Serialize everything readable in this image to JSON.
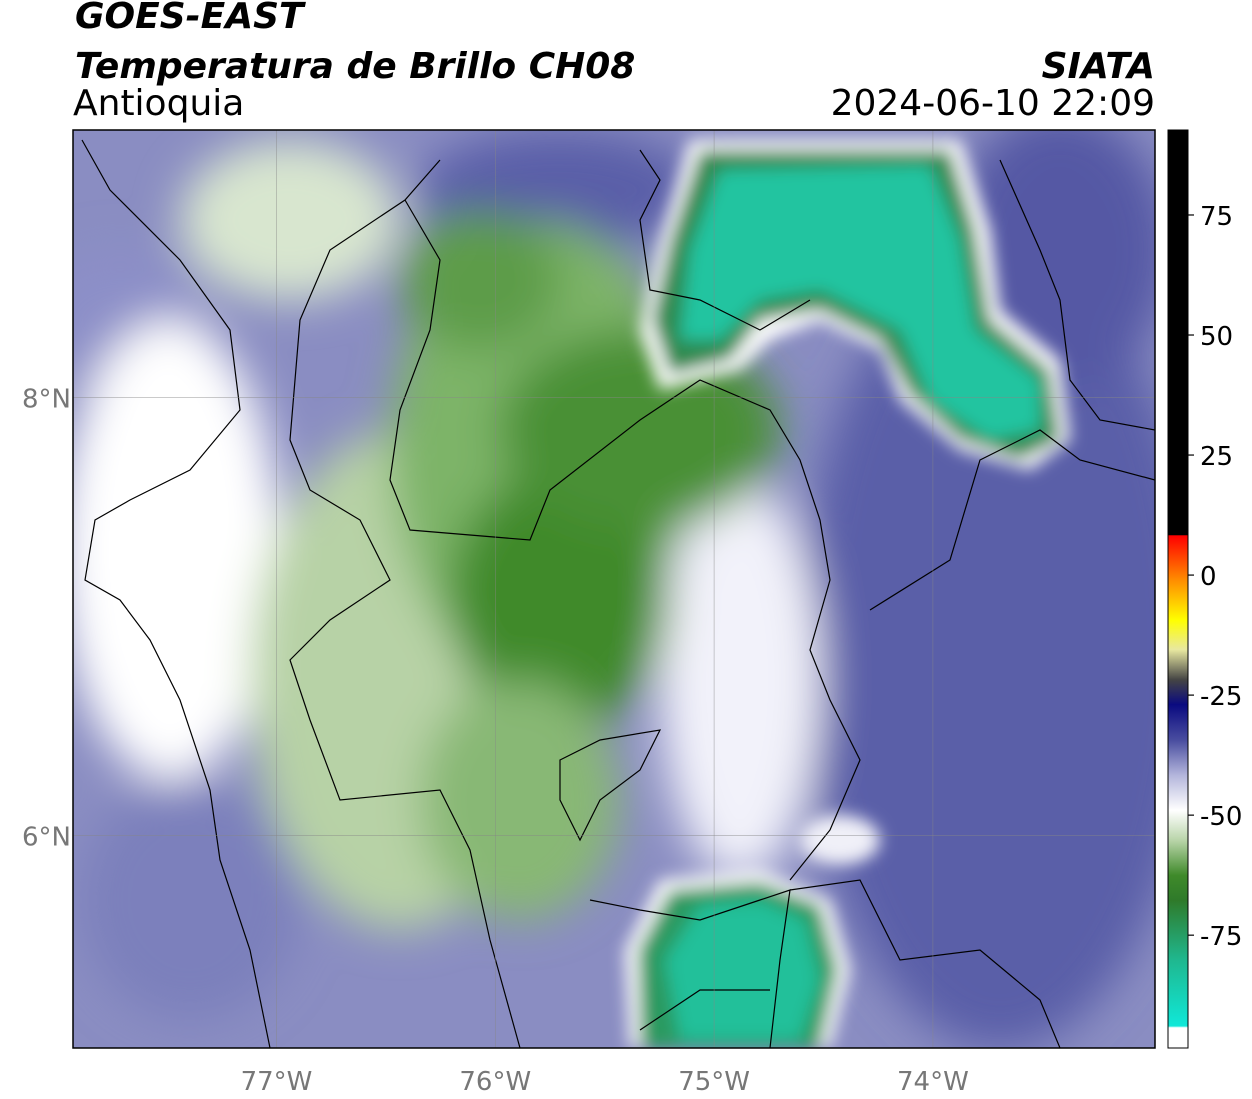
{
  "header": {
    "title": "GOES-EAST",
    "subtitle": "Temperatura de Brillo CH08",
    "region": "Antioquia",
    "source": "SIATA",
    "datetime": "2024-06-10 22:09"
  },
  "map": {
    "xlim": [
      -77.93,
      -72.985
    ],
    "ylim": [
      5.03,
      9.22
    ],
    "xticks": [
      {
        "value": -77,
        "label": "77°W"
      },
      {
        "value": -76,
        "label": "76°W"
      },
      {
        "value": -75,
        "label": "75°W"
      },
      {
        "value": -74,
        "label": "74°W"
      }
    ],
    "yticks": [
      {
        "value": 8,
        "label": "8°N"
      },
      {
        "value": 6,
        "label": "6°N"
      }
    ],
    "grid": true
  },
  "colorbar": {
    "lim": [
      -98.5,
      92.7
    ],
    "ticks": [
      75,
      50,
      25,
      0,
      -25,
      -50,
      -75
    ]
  }
}
